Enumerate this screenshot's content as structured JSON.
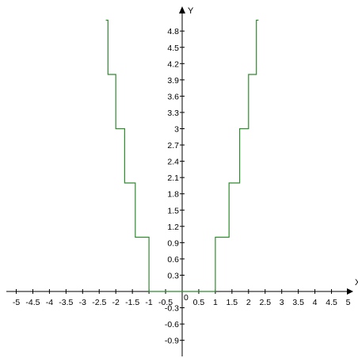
{
  "chart_data": {
    "type": "line",
    "title": "",
    "xlabel": "X",
    "ylabel": "Y",
    "xlim": [
      -5.3,
      5.3
    ],
    "ylim": [
      -1.25,
      5.0
    ],
    "grid": false,
    "x_ticks": [
      -5,
      -4.5,
      -4,
      -3.5,
      -3,
      -2.5,
      -2,
      -1.5,
      -1,
      -0.5,
      0.5,
      1,
      1.5,
      2,
      2.5,
      3,
      3.5,
      4,
      4.5,
      5
    ],
    "x_tick_labels": [
      "-5",
      "-4.5",
      "-4",
      "-3.5",
      "-3",
      "-2.5",
      "-2",
      "-1.5",
      "-1",
      "-0.5",
      "0.5",
      "1",
      "1.5",
      "2",
      "2.5",
      "3",
      "3.5",
      "4",
      "4.5",
      "5"
    ],
    "origin_label": "0",
    "y_ticks": [
      4.8,
      4.5,
      4.2,
      3.9,
      3.6,
      3.3,
      3,
      2.7,
      2.4,
      2.1,
      1.8,
      1.5,
      1.2,
      0.9,
      0.6,
      0.3,
      -0.3,
      -0.6,
      -0.9
    ],
    "y_tick_labels": [
      "4.8",
      "4.5",
      "4.2",
      "3.9",
      "3.6",
      "3.3",
      "3",
      "2.7",
      "2.4",
      "2.1",
      "1.8",
      "1.5",
      "1.2",
      "0.9",
      "0.6",
      "0.3",
      "-0.3",
      "-0.6",
      "-0.9"
    ],
    "series": [
      {
        "color": "#2e8b2e",
        "points": [
          [
            -2.3,
            5.0
          ],
          [
            -2.236,
            5.0
          ],
          [
            -2.236,
            4.0
          ],
          [
            -2.0,
            4.0
          ],
          [
            -2.0,
            3.0
          ],
          [
            -1.732,
            3.0
          ],
          [
            -1.732,
            2.0
          ],
          [
            -1.414,
            2.0
          ],
          [
            -1.414,
            1.0
          ],
          [
            -1.0,
            1.0
          ],
          [
            -1.0,
            0.0
          ],
          [
            1.0,
            0.0
          ],
          [
            1.0,
            1.0
          ],
          [
            1.414,
            1.0
          ],
          [
            1.414,
            2.0
          ],
          [
            1.732,
            2.0
          ],
          [
            1.732,
            3.0
          ],
          [
            2.0,
            3.0
          ],
          [
            2.0,
            4.0
          ],
          [
            2.236,
            4.0
          ],
          [
            2.236,
            5.0
          ],
          [
            2.3,
            5.0
          ]
        ]
      }
    ]
  }
}
